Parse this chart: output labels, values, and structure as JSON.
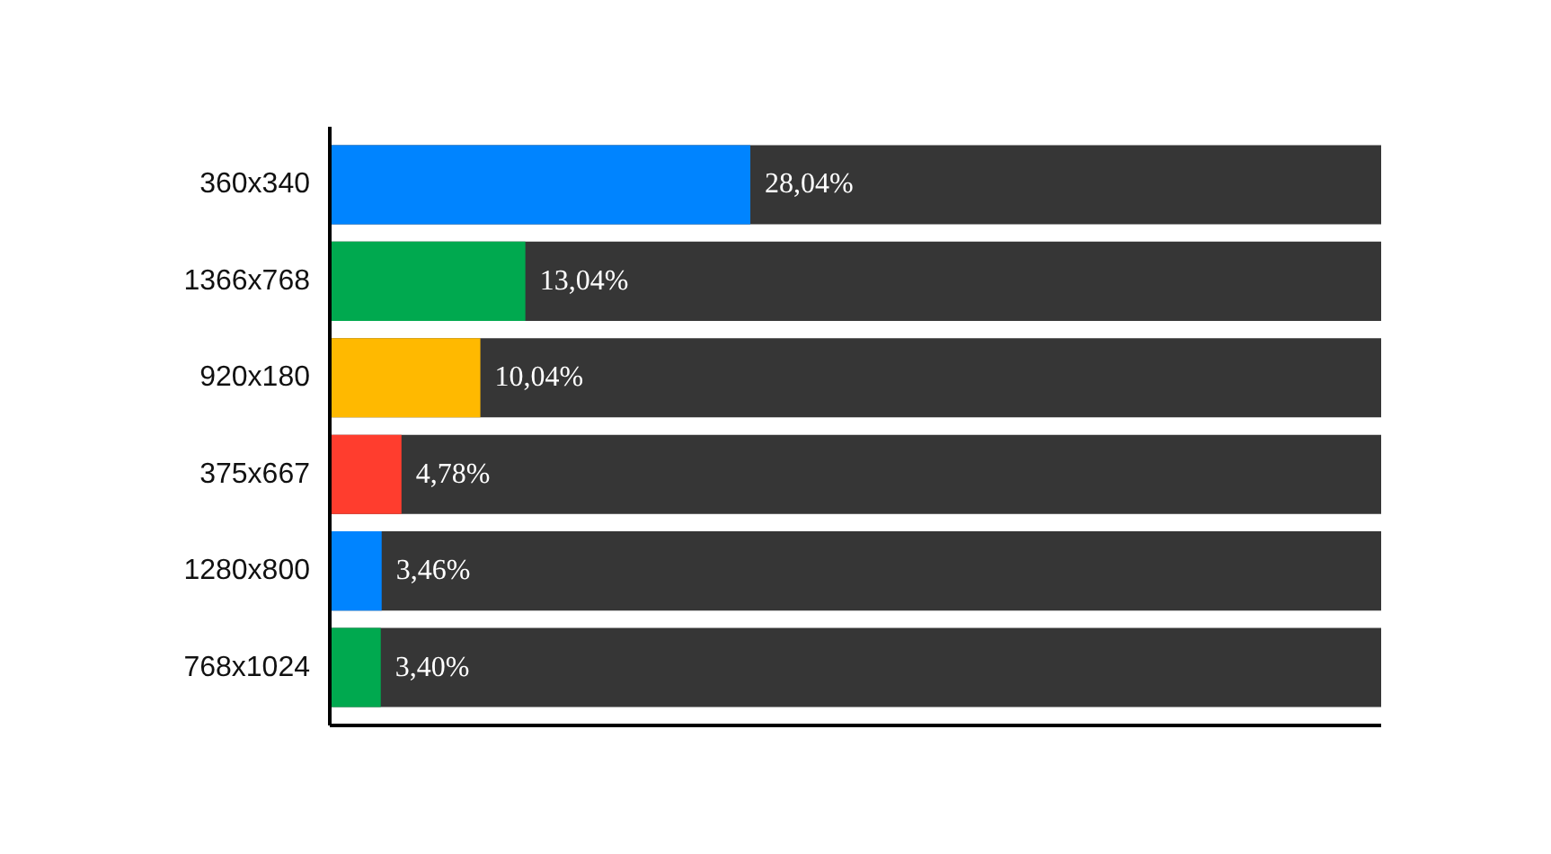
{
  "chart_data": {
    "type": "bar",
    "orientation": "horizontal",
    "categories": [
      "360x340",
      "1366x768",
      "920x180",
      "375x667",
      "1280x800",
      "768x1024"
    ],
    "colors": [
      "#0084ff",
      "#00a94f",
      "#ffb900",
      "#ff3d2e",
      "#0084ff",
      "#00a94f"
    ],
    "values": [
      28.04,
      13.04,
      10.04,
      4.78,
      3.46,
      3.4
    ],
    "value_labels": [
      "28,04%",
      "13,04%",
      "10,04%",
      "4,78%",
      "3,46%",
      "3,40%"
    ],
    "tick_labels": "y"
  }
}
